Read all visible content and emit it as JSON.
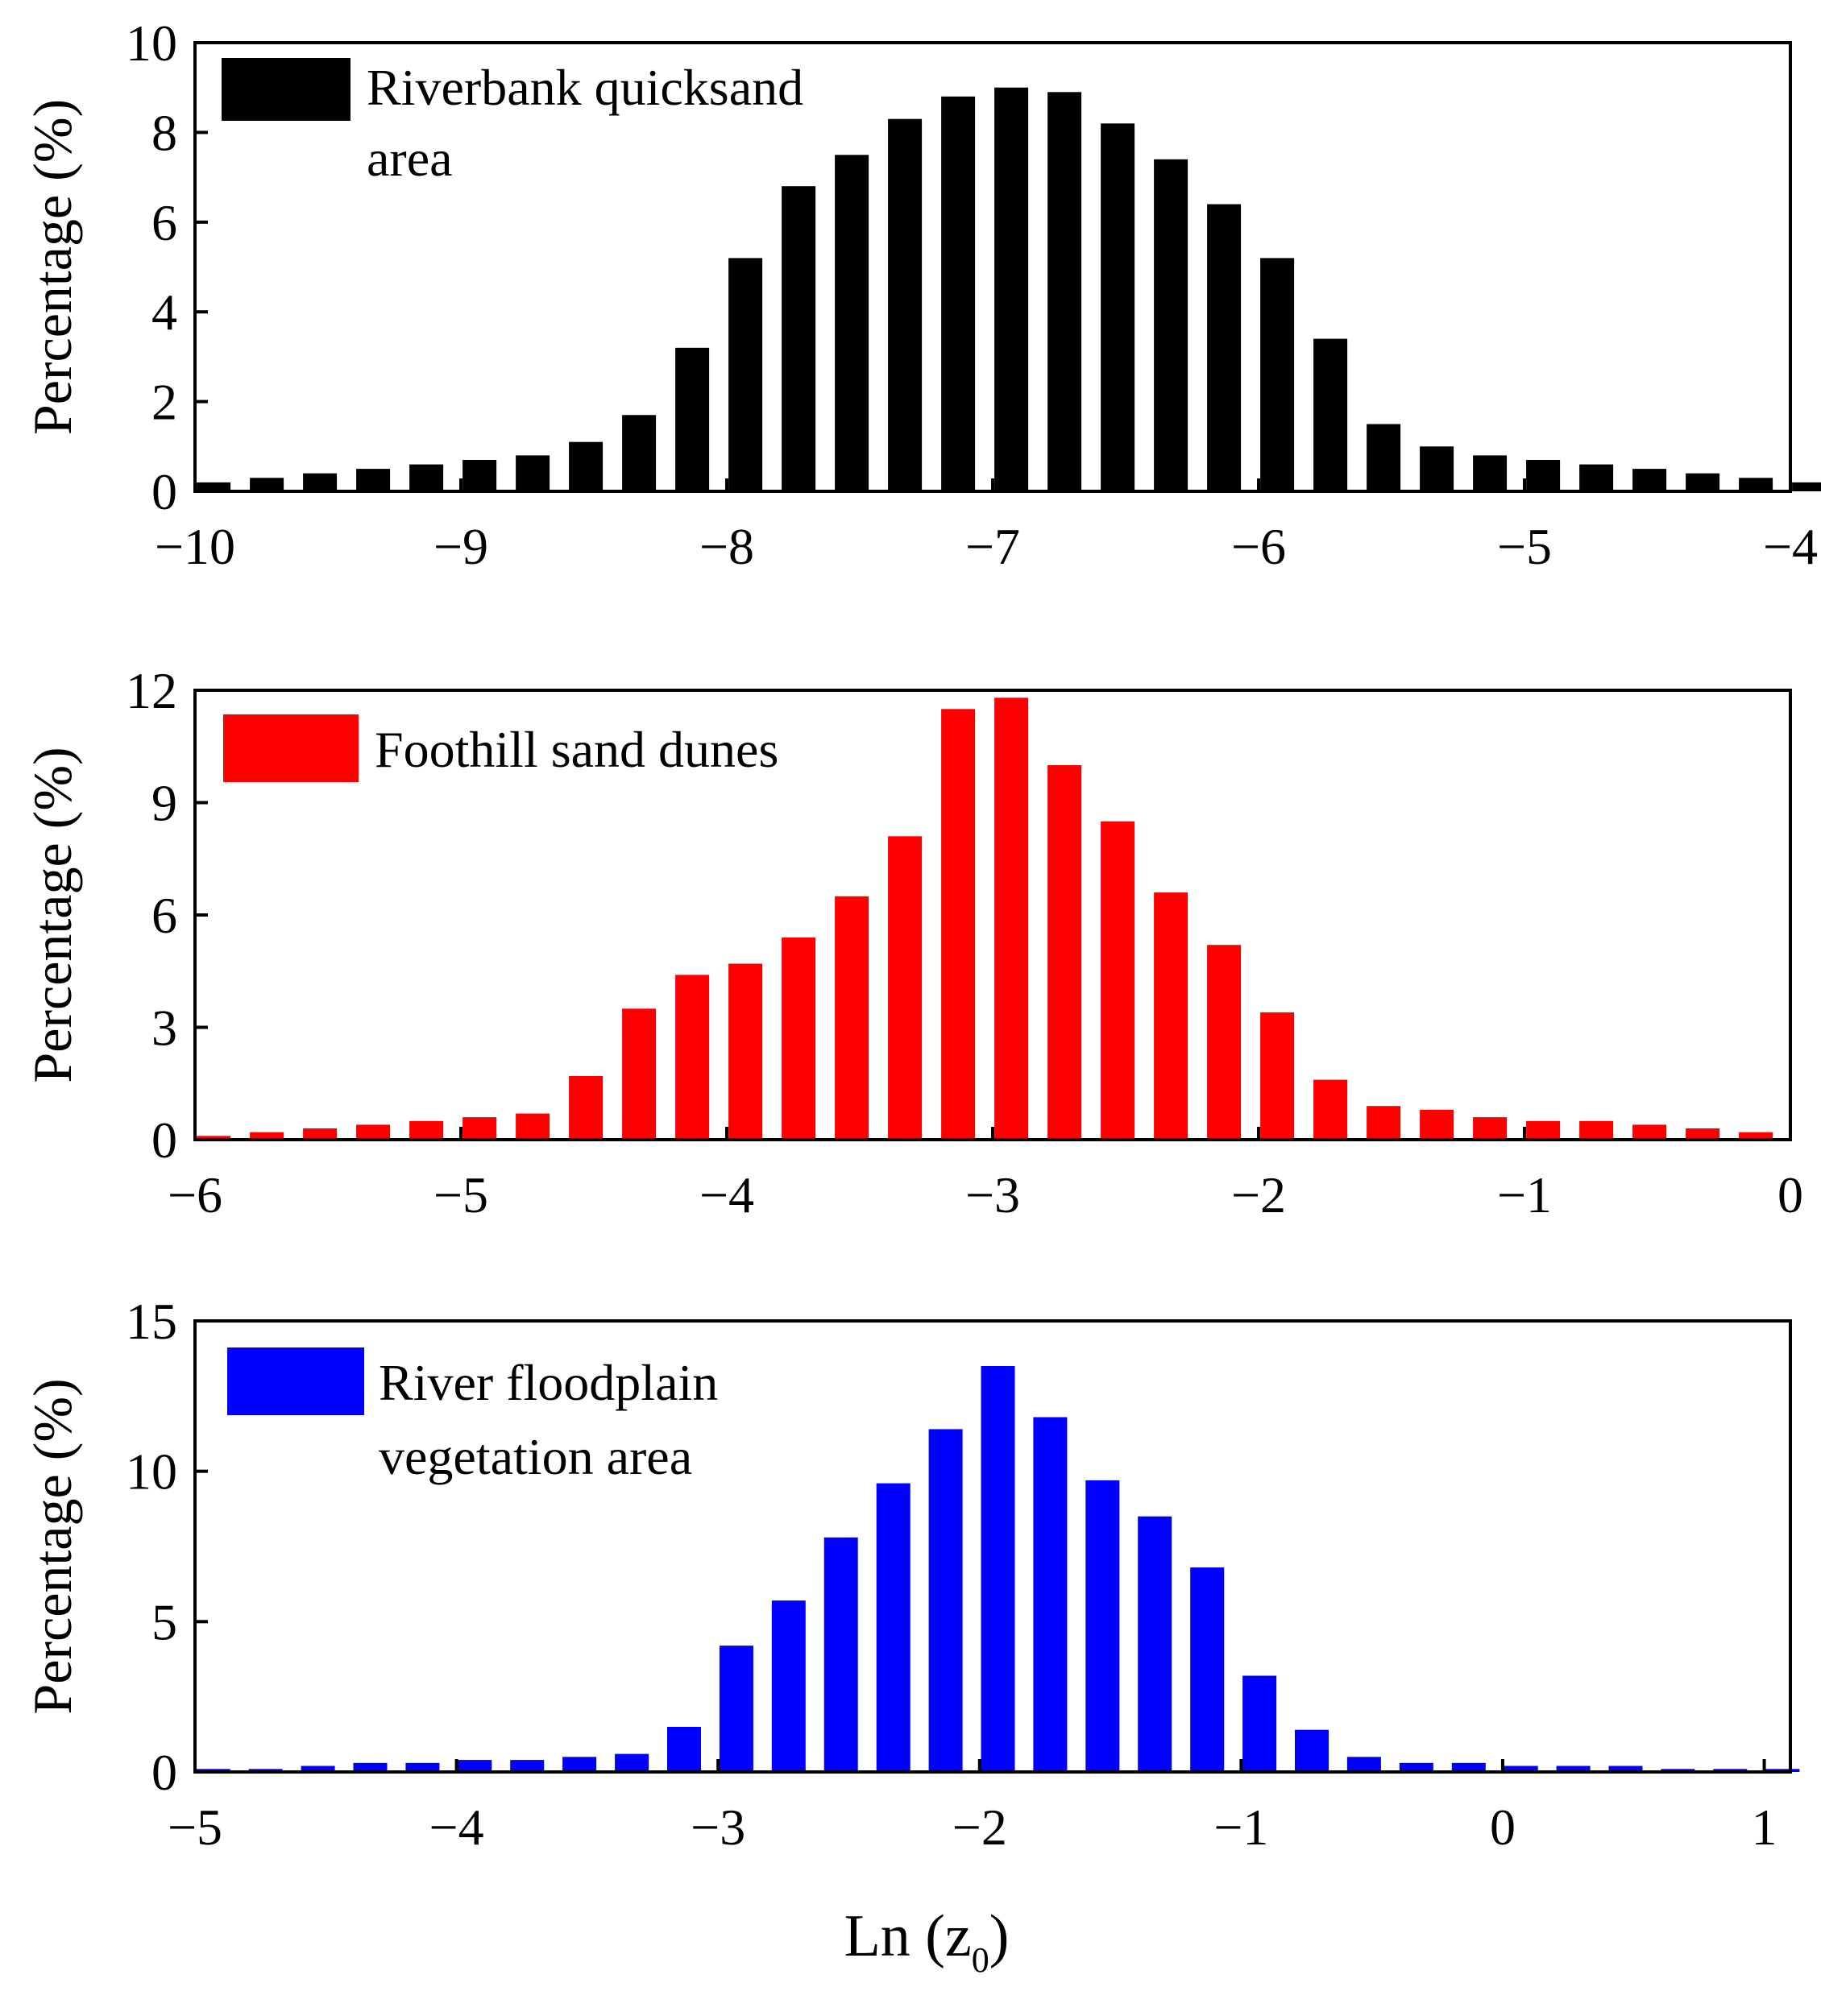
{
  "chart_data": [
    {
      "type": "bar",
      "name": "riverbank-quicksand",
      "ylabel": "Percentage (%)",
      "legend": [
        "Riverbank quicksand",
        "area"
      ],
      "color": "#000000",
      "xlim": [
        -10,
        -4
      ],
      "ylim": [
        0,
        10
      ],
      "xticks": [
        -10,
        -9,
        -8,
        -7,
        -6,
        -5,
        -4
      ],
      "xtick_labels": [
        "−10",
        "−9",
        "−8",
        "−7",
        "−6",
        "−5",
        "−4"
      ],
      "yticks": [
        0,
        2,
        4,
        6,
        8,
        10
      ],
      "ytick_labels": [
        "0",
        "2",
        "4",
        "6",
        "8",
        "10"
      ],
      "x": [
        -9.93,
        -9.73,
        -9.53,
        -9.33,
        -9.13,
        -8.93,
        -8.73,
        -8.53,
        -8.33,
        -8.13,
        -7.93,
        -7.73,
        -7.53,
        -7.33,
        -7.13,
        -6.93,
        -6.73,
        -6.53,
        -6.33,
        -6.13,
        -5.93,
        -5.73,
        -5.53,
        -5.33,
        -5.13,
        -4.93,
        -4.73,
        -4.53,
        -4.33,
        -4.13,
        -3.93
      ],
      "values": [
        0.2,
        0.3,
        0.4,
        0.5,
        0.6,
        0.7,
        0.8,
        1.1,
        1.7,
        3.2,
        5.2,
        6.8,
        7.5,
        8.3,
        8.8,
        9.0,
        8.9,
        8.2,
        7.4,
        6.4,
        5.2,
        3.4,
        1.5,
        1.0,
        0.8,
        0.7,
        0.6,
        0.5,
        0.4,
        0.3,
        0.2
      ]
    },
    {
      "type": "bar",
      "name": "foothill-sand-dunes",
      "ylabel": "Percentage (%)",
      "legend": [
        "Foothill sand dunes"
      ],
      "color": "#ff0000",
      "xlim": [
        -6,
        0
      ],
      "ylim": [
        0,
        12
      ],
      "xticks": [
        -6,
        -5,
        -4,
        -3,
        -2,
        -1,
        0
      ],
      "xtick_labels": [
        "−6",
        "−5",
        "−4",
        "−3",
        "−2",
        "−1",
        "0"
      ],
      "yticks": [
        0,
        3,
        6,
        9,
        12
      ],
      "ytick_labels": [
        "0",
        "3",
        "6",
        "9",
        "12"
      ],
      "x": [
        -5.93,
        -5.73,
        -5.53,
        -5.33,
        -5.13,
        -4.93,
        -4.73,
        -4.53,
        -4.33,
        -4.13,
        -3.93,
        -3.73,
        -3.53,
        -3.33,
        -3.13,
        -2.93,
        -2.73,
        -2.53,
        -2.33,
        -2.13,
        -1.93,
        -1.73,
        -1.53,
        -1.33,
        -1.13,
        -0.93,
        -0.73,
        -0.53,
        -0.33,
        -0.13
      ],
      "values": [
        0.1,
        0.2,
        0.3,
        0.4,
        0.5,
        0.6,
        0.7,
        1.7,
        3.5,
        4.4,
        4.7,
        5.4,
        6.5,
        8.1,
        11.5,
        11.8,
        10.0,
        8.5,
        6.6,
        5.2,
        3.4,
        1.6,
        0.9,
        0.8,
        0.6,
        0.5,
        0.5,
        0.4,
        0.3,
        0.2
      ]
    },
    {
      "type": "bar",
      "name": "river-floodplain-vegetation",
      "ylabel": "Percentage (%)",
      "legend": [
        "River floodplain",
        "vegetation area"
      ],
      "color": "#0000ff",
      "xlim": [
        -5,
        1.1
      ],
      "ylim": [
        0,
        15
      ],
      "xticks": [
        -5,
        -4,
        -3,
        -2,
        -1,
        0,
        1
      ],
      "xtick_labels": [
        "−5",
        "−4",
        "−3",
        "−2",
        "−1",
        "0",
        "1"
      ],
      "yticks": [
        0,
        5,
        10,
        15
      ],
      "ytick_labels": [
        "0",
        "5",
        "10",
        "15"
      ],
      "x": [
        -4.93,
        -4.73,
        -4.53,
        -4.33,
        -4.13,
        -3.93,
        -3.73,
        -3.53,
        -3.33,
        -3.13,
        -2.93,
        -2.73,
        -2.53,
        -2.33,
        -2.13,
        -1.93,
        -1.73,
        -1.53,
        -1.33,
        -1.13,
        -0.93,
        -0.73,
        -0.53,
        -0.33,
        -0.13,
        0.07,
        0.27,
        0.47,
        0.67,
        0.87,
        1.07
      ],
      "values": [
        0.1,
        0.1,
        0.2,
        0.3,
        0.3,
        0.4,
        0.4,
        0.5,
        0.6,
        1.5,
        4.2,
        5.7,
        7.8,
        9.6,
        11.4,
        13.5,
        11.8,
        9.7,
        8.5,
        6.8,
        3.2,
        1.4,
        0.5,
        0.3,
        0.3,
        0.2,
        0.2,
        0.2,
        0.1,
        0.1,
        0.1
      ]
    }
  ],
  "xlabel": {
    "main": "Ln (z",
    "subscript": "0",
    "close": ")"
  }
}
